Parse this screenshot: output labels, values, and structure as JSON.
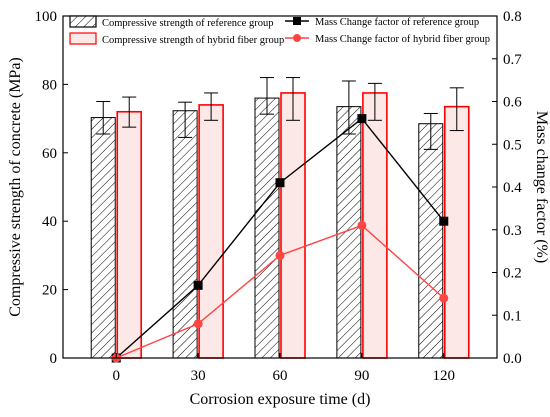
{
  "chart_data": {
    "type": "bar",
    "xlabel": "Corrosion exposure time (d)",
    "ylabel_left": "Compressive strength of concrete (MPa)",
    "ylabel_right": "Mass change factor (%)",
    "categories": [
      "0",
      "30",
      "60",
      "90",
      "120"
    ],
    "ylim_left": [
      0,
      100
    ],
    "yticks_left": [
      "0",
      "20",
      "40",
      "60",
      "80",
      "100"
    ],
    "ylim_right": [
      0,
      0.8
    ],
    "yticks_right": [
      "0.0",
      "0.1",
      "0.2",
      "0.3",
      "0.4",
      "0.5",
      "0.6",
      "0.7",
      "0.8"
    ],
    "grid": false,
    "legend_position": "top",
    "bar_series": [
      {
        "name": "Compressive strength of reference group",
        "values": [
          70.3,
          72.3,
          76.0,
          73.5,
          68.5
        ],
        "error_low": [
          65.5,
          64.5,
          71.3,
          65.5,
          61.0
        ],
        "error_high": [
          75.0,
          74.8,
          82.0,
          81.0,
          71.5
        ],
        "fill": "hatched",
        "color": "#000000"
      },
      {
        "name": "Compressive strength of hybrid fiber group",
        "values": [
          72.0,
          74.0,
          77.5,
          77.5,
          73.5
        ],
        "error_low": [
          67.5,
          69.5,
          69.5,
          69.5,
          66.5
        ],
        "error_high": [
          76.3,
          77.5,
          82.0,
          80.3,
          79.0
        ],
        "fill": "#fde8e8",
        "color": "#ff0000"
      }
    ],
    "line_series": [
      {
        "name": "Mass Change factor of reference group",
        "values": [
          0.0,
          0.17,
          0.41,
          0.56,
          0.32
        ],
        "color": "#000000",
        "marker": "square"
      },
      {
        "name": "Mass Change factor of hybrid fiber group",
        "values": [
          0.0,
          0.08,
          0.24,
          0.31,
          0.14
        ],
        "color": "#ff4444",
        "marker": "circle"
      }
    ]
  }
}
